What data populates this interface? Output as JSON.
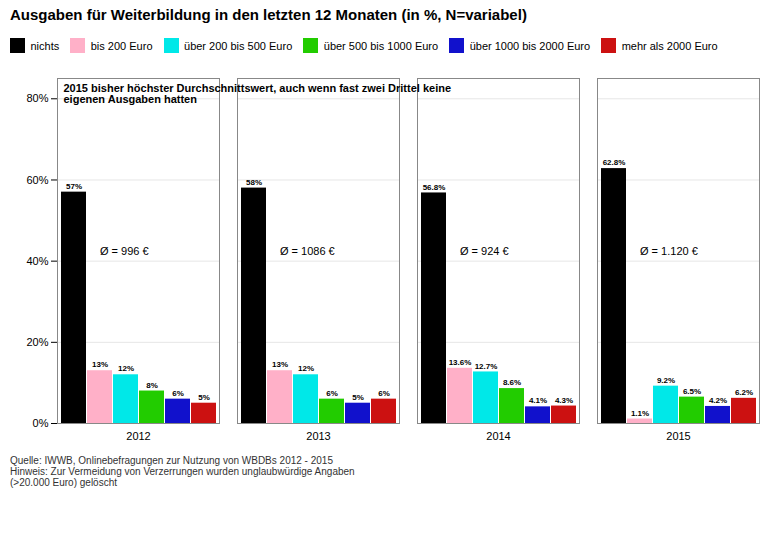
{
  "chart_data": {
    "type": "bar",
    "title": "Ausgaben für Weiterbildung in den letzten 12 Monaten (in %, N=variabel)",
    "categories": [
      "2012",
      "2013",
      "2014",
      "2015"
    ],
    "series": [
      {
        "name": "nichts",
        "color": "#000000",
        "values": [
          57.0,
          58.0,
          56.8,
          62.8
        ],
        "value_labels": [
          "57%",
          "58%",
          "56.8%",
          "62.8%"
        ]
      },
      {
        "name": "bis 200 Euro",
        "color": "#FFB0C8",
        "values": [
          13.0,
          13.0,
          13.6,
          1.1
        ],
        "value_labels": [
          "13%",
          "13%",
          "13.6%",
          "1.1%"
        ]
      },
      {
        "name": "über 200 bis 500 Euro",
        "color": "#00E8E8",
        "values": [
          12.0,
          12.0,
          12.7,
          9.2
        ],
        "value_labels": [
          "12%",
          "12%",
          "12.7%",
          "9.2%"
        ]
      },
      {
        "name": "über 500 bis 1000 Euro",
        "color": "#22CC00",
        "values": [
          8.0,
          6.0,
          8.6,
          6.5
        ],
        "value_labels": [
          "8%",
          "6%",
          "8.6%",
          "6.5%"
        ]
      },
      {
        "name": "über 1000 bis 2000 Euro",
        "color": "#1111CC",
        "values": [
          6.0,
          5.0,
          4.1,
          4.2
        ],
        "value_labels": [
          "6%",
          "5%",
          "4.1%",
          "4.2%"
        ]
      },
      {
        "name": "mehr als 2000 Euro",
        "color": "#CC1111",
        "values": [
          5.0,
          6.0,
          4.3,
          6.2
        ],
        "value_labels": [
          "5%",
          "6%",
          "4.3%",
          "6.2%"
        ]
      }
    ],
    "ylim": [
      0,
      85
    ],
    "yticks": [
      {
        "value": 0,
        "label": "0%"
      },
      {
        "value": 20,
        "label": "20%"
      },
      {
        "value": 40,
        "label": "40%"
      },
      {
        "value": 60,
        "label": "60%"
      },
      {
        "value": 80,
        "label": "80%"
      }
    ],
    "grid": true,
    "legend": "top",
    "data_labels": true,
    "annotations": [
      {
        "text": "2015 bisher höchster Durchschnittswert, auch wenn fast zwei Drittel keine\neigenen Ausgaben hatten"
      },
      {
        "category": "2012",
        "text": "Ø = 996 €"
      },
      {
        "category": "2013",
        "text": "Ø = 1086 €"
      },
      {
        "category": "2014",
        "text": "Ø = 924 €"
      },
      {
        "category": "2015",
        "text": "Ø = 1.120 €"
      }
    ],
    "caption": "Quelle: IWWB, Onlinebefragungen zur Nutzung von WBDBs 2012 - 2015\nHinweis: Zur Vermeidung von Verzerrungen wurden unglaubwürdige Angaben\n(>20.000 Euro) gelöscht"
  }
}
